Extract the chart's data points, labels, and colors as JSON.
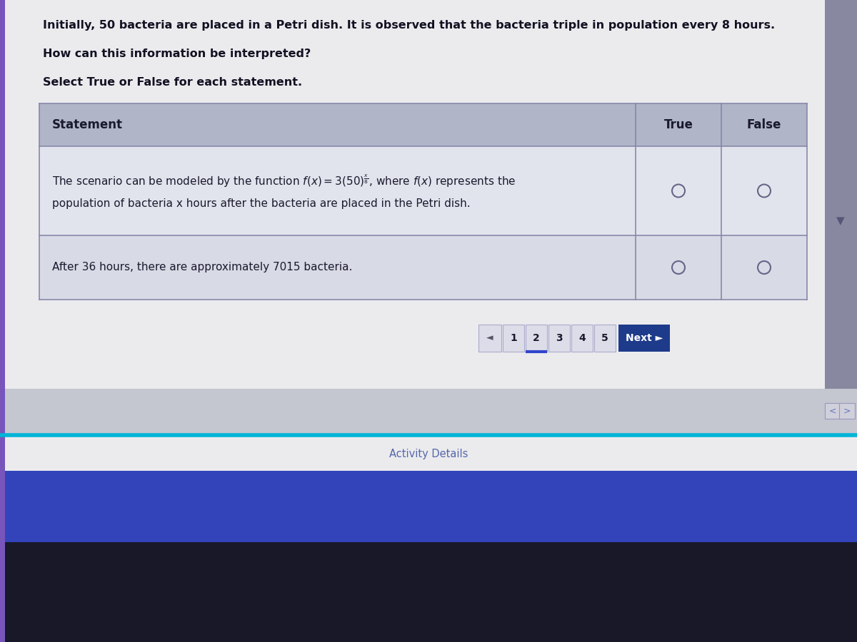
{
  "bg_outer": "#c8c8d0",
  "content_bg": "#ebebee",
  "table_header_bg": "#b0b5c8",
  "table_row1_bg": "#e2e4ed",
  "table_row2_bg": "#d8dae5",
  "table_sep_bg": "#c8cad6",
  "table_border": "#8888aa",
  "title_line1": "Initially, 50 bacteria are placed in a Petri dish. It is observed that the bacteria triple in population every 8 hours.",
  "title_line2": "How can this information be interpreted?",
  "title_line3": "Select True or False for each statement.",
  "col_statement": "Statement",
  "col_true": "True",
  "col_false": "False",
  "row1_line1": "The scenario can be modeled by the function",
  "row1_math": "$f(x) = 3(50)^{\\frac{x}{8}}$,",
  "row1_line1b": "where $f(x)$ represents the",
  "row1_line2": "population of bacteria x hours after the bacteria are placed in the Petri dish.",
  "row2_text": "After 36 hours, there are approximately 7015 bacteria.",
  "nav_arrow": "◄",
  "nav_pages": [
    "1",
    "2",
    "3",
    "4",
    "5"
  ],
  "nav_current": "2",
  "nav_next": "Next ►",
  "nav_next_bg": "#1e3a8a",
  "nav_btn_bg": "#dcdde8",
  "nav_btn_border": "#aaaacc",
  "activity_details": "Activity Details",
  "footer_line_color": "#00b4d8",
  "bottom_purple": "#3344bb",
  "dark_kb": "#181828",
  "left_strip": "#7755bb",
  "right_sidebar": "#8888a0",
  "scroll_arrow_color": "#555577",
  "nav_bracket_color": "#6677bb",
  "circle_color": "#666688",
  "text_color": "#1a1a2e",
  "title_color": "#111122"
}
